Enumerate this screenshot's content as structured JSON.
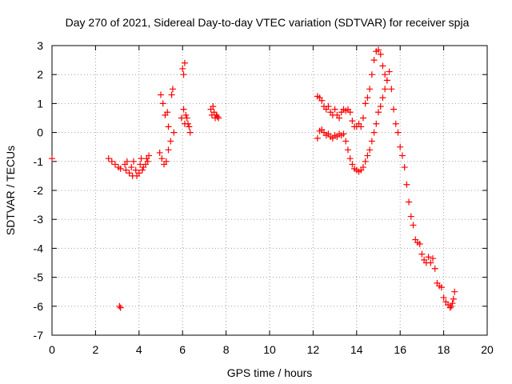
{
  "chart_data": {
    "type": "scatter",
    "title": "Day 270 of 2021, Sidereal Day-to-day VTEC variation (SDTVAR) for receiver spja",
    "xlabel": "GPS time / hours",
    "ylabel": "SDTVAR / TECUs",
    "xlim": [
      0,
      20
    ],
    "ylim": [
      -7,
      3
    ],
    "xticks": [
      0,
      2,
      4,
      6,
      8,
      10,
      12,
      14,
      16,
      18,
      20
    ],
    "yticks": [
      -7,
      -6,
      -5,
      -4,
      -3,
      -2,
      -1,
      0,
      1,
      2,
      3
    ],
    "grid": true,
    "marker": "+",
    "color": "#ff0000",
    "series": [
      {
        "name": "SDTVAR",
        "points": [
          [
            0.0,
            -0.9
          ],
          [
            2.6,
            -0.9
          ],
          [
            2.75,
            -1.0
          ],
          [
            2.9,
            -1.1
          ],
          [
            3.05,
            -1.2
          ],
          [
            3.15,
            -1.25
          ],
          [
            3.1,
            -6.0
          ],
          [
            3.15,
            -6.05
          ],
          [
            3.35,
            -1.1
          ],
          [
            3.4,
            -1.3
          ],
          [
            3.45,
            -1.0
          ],
          [
            3.55,
            -1.4
          ],
          [
            3.65,
            -1.2
          ],
          [
            3.7,
            -1.5
          ],
          [
            3.75,
            -1.0
          ],
          [
            3.85,
            -1.3
          ],
          [
            3.9,
            -1.5
          ],
          [
            4.0,
            -1.4
          ],
          [
            4.05,
            -1.1
          ],
          [
            4.1,
            -0.9
          ],
          [
            4.15,
            -1.3
          ],
          [
            4.2,
            -1.2
          ],
          [
            4.3,
            -1.1
          ],
          [
            4.35,
            -0.9
          ],
          [
            4.4,
            -1.0
          ],
          [
            4.45,
            -0.8
          ],
          [
            4.95,
            -0.7
          ],
          [
            5.0,
            1.3
          ],
          [
            5.05,
            -0.9
          ],
          [
            5.1,
            1.0
          ],
          [
            5.15,
            -1.1
          ],
          [
            5.2,
            0.6
          ],
          [
            5.25,
            -1.0
          ],
          [
            5.3,
            0.7
          ],
          [
            5.35,
            0.2
          ],
          [
            5.35,
            -0.6
          ],
          [
            5.45,
            -0.3
          ],
          [
            5.5,
            1.3
          ],
          [
            5.55,
            1.5
          ],
          [
            5.6,
            0.0
          ],
          [
            5.95,
            0.5
          ],
          [
            6.0,
            2.2
          ],
          [
            6.05,
            0.8
          ],
          [
            6.05,
            2.0
          ],
          [
            6.1,
            2.4
          ],
          [
            6.1,
            0.3
          ],
          [
            6.15,
            0.6
          ],
          [
            6.2,
            0.5
          ],
          [
            6.25,
            0.3
          ],
          [
            6.3,
            0.2
          ],
          [
            6.35,
            0.0
          ],
          [
            7.3,
            0.8
          ],
          [
            7.35,
            0.6
          ],
          [
            7.4,
            0.9
          ],
          [
            7.45,
            0.7
          ],
          [
            7.5,
            0.5
          ],
          [
            7.55,
            0.6
          ],
          [
            7.6,
            0.55
          ],
          [
            7.65,
            0.5
          ],
          [
            12.2,
            1.25
          ],
          [
            12.3,
            1.2
          ],
          [
            12.4,
            1.1
          ],
          [
            12.5,
            0.9
          ],
          [
            12.6,
            0.8
          ],
          [
            12.7,
            0.9
          ],
          [
            12.8,
            0.7
          ],
          [
            12.9,
            0.6
          ],
          [
            13.0,
            0.8
          ],
          [
            13.1,
            0.6
          ],
          [
            13.2,
            0.5
          ],
          [
            13.3,
            0.7
          ],
          [
            13.4,
            0.8
          ],
          [
            13.5,
            0.75
          ],
          [
            13.6,
            0.8
          ],
          [
            13.7,
            0.7
          ],
          [
            13.8,
            0.4
          ],
          [
            13.9,
            0.2
          ],
          [
            14.0,
            0.2
          ],
          [
            14.1,
            0.3
          ],
          [
            14.2,
            0.2
          ],
          [
            14.3,
            0.5
          ],
          [
            14.4,
            1.0
          ],
          [
            14.5,
            1.2
          ],
          [
            14.6,
            1.5
          ],
          [
            14.7,
            2.0
          ],
          [
            14.8,
            2.5
          ],
          [
            14.9,
            2.8
          ],
          [
            15.0,
            2.85
          ],
          [
            15.1,
            2.7
          ],
          [
            15.2,
            2.3
          ],
          [
            15.3,
            2.0
          ],
          [
            15.4,
            1.8
          ],
          [
            15.5,
            2.1
          ],
          [
            15.6,
            1.5
          ],
          [
            15.7,
            0.8
          ],
          [
            15.8,
            0.3
          ],
          [
            15.9,
            0.0
          ],
          [
            16.0,
            -0.5
          ],
          [
            16.1,
            -0.8
          ],
          [
            12.2,
            -0.2
          ],
          [
            12.3,
            0.05
          ],
          [
            12.4,
            0.1
          ],
          [
            12.5,
            0.0
          ],
          [
            12.6,
            -0.1
          ],
          [
            12.7,
            -0.05
          ],
          [
            12.8,
            -0.15
          ],
          [
            12.9,
            -0.2
          ],
          [
            13.0,
            -0.1
          ],
          [
            13.1,
            -0.15
          ],
          [
            13.2,
            -0.05
          ],
          [
            13.3,
            -0.1
          ],
          [
            13.4,
            -0.05
          ],
          [
            13.5,
            -0.3
          ],
          [
            13.6,
            -0.6
          ],
          [
            13.7,
            -0.9
          ],
          [
            13.8,
            -1.1
          ],
          [
            13.9,
            -1.25
          ],
          [
            14.0,
            -1.3
          ],
          [
            14.1,
            -1.35
          ],
          [
            14.2,
            -1.3
          ],
          [
            14.3,
            -1.2
          ],
          [
            14.4,
            -1.0
          ],
          [
            14.5,
            -0.8
          ],
          [
            14.6,
            -0.6
          ],
          [
            14.7,
            -0.3
          ],
          [
            14.8,
            0.0
          ],
          [
            14.9,
            0.3
          ],
          [
            15.0,
            0.7
          ],
          [
            15.1,
            0.9
          ],
          [
            15.2,
            1.2
          ],
          [
            15.3,
            1.5
          ],
          [
            15.4,
            1.8
          ],
          [
            16.2,
            -1.2
          ],
          [
            16.3,
            -1.8
          ],
          [
            16.4,
            -2.4
          ],
          [
            16.5,
            -2.9
          ],
          [
            16.6,
            -3.2
          ],
          [
            16.7,
            -3.7
          ],
          [
            16.8,
            -3.8
          ],
          [
            16.9,
            -3.85
          ],
          [
            17.0,
            -4.2
          ],
          [
            17.1,
            -4.4
          ],
          [
            17.2,
            -4.5
          ],
          [
            17.3,
            -4.3
          ],
          [
            17.4,
            -4.5
          ],
          [
            17.5,
            -4.35
          ],
          [
            17.6,
            -4.7
          ],
          [
            17.7,
            -5.2
          ],
          [
            17.8,
            -5.3
          ],
          [
            17.9,
            -5.35
          ],
          [
            18.0,
            -5.7
          ],
          [
            18.1,
            -5.85
          ],
          [
            18.2,
            -5.95
          ],
          [
            18.3,
            -6.05
          ],
          [
            18.35,
            -6.0
          ],
          [
            18.4,
            -5.9
          ],
          [
            18.45,
            -5.75
          ],
          [
            18.5,
            -5.5
          ]
        ]
      }
    ]
  }
}
